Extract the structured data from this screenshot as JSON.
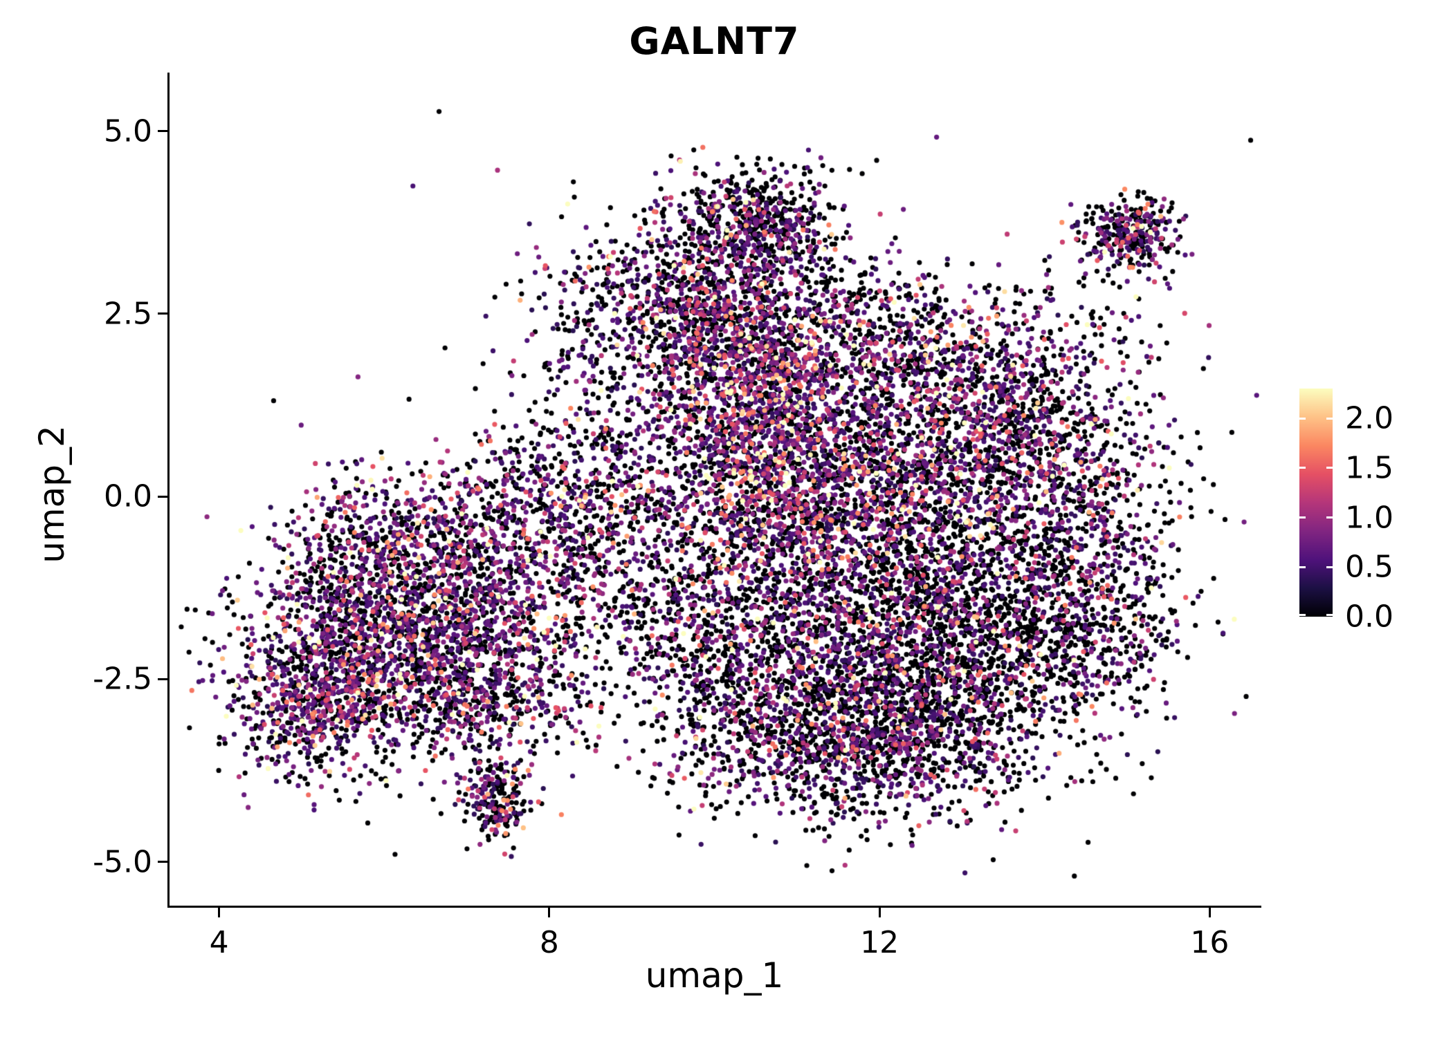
{
  "chart_data": {
    "type": "scatter",
    "title": "GALNT7",
    "xlabel": "umap_1",
    "ylabel": "umap_2",
    "xlim": [
      3.4,
      16.6
    ],
    "ylim": [
      -5.6,
      5.8
    ],
    "x_ticks": [
      4,
      8,
      12,
      16
    ],
    "x_tick_labels": [
      "4",
      "8",
      "12",
      "16"
    ],
    "y_ticks": [
      5.0,
      2.5,
      0.0,
      -2.5,
      -5.0
    ],
    "y_tick_labels": [
      "5.0",
      "2.5",
      "0.0",
      "-2.5",
      "-5.0"
    ],
    "grid": false,
    "legend_position": "right",
    "legend": {
      "ticks": [
        2.0,
        1.5,
        1.0,
        0.5,
        0.0
      ],
      "tick_labels": [
        "2.0",
        "1.5",
        "1.0",
        "0.5",
        "0.0"
      ],
      "vmin": 0.0,
      "vmax": 2.3
    },
    "colormap": {
      "name": "magma",
      "stops": [
        "#000004",
        "#1c1044",
        "#4f127b",
        "#812581",
        "#b5367a",
        "#e55064",
        "#fb8761",
        "#fec287",
        "#fcfdbf"
      ]
    },
    "point_radius_px": 3.6,
    "seed": 42,
    "expr": {
      "nonzero_min": 0.35,
      "cap": 2.3
    },
    "clusters": [
      {
        "cx": 6.2,
        "cy": -1.8,
        "sx": 1.0,
        "sy": 0.85,
        "n": 1500,
        "p0": 0.42,
        "scale": 0.5
      },
      {
        "cx": 5.35,
        "cy": -2.6,
        "sx": 0.55,
        "sy": 0.6,
        "n": 500,
        "p0": 0.45,
        "scale": 0.5
      },
      {
        "cx": 6.0,
        "cy": -0.7,
        "sx": 0.7,
        "sy": 0.55,
        "n": 450,
        "p0": 0.45,
        "scale": 0.5
      },
      {
        "cx": 7.3,
        "cy": -1.3,
        "sx": 0.7,
        "sy": 0.8,
        "n": 600,
        "p0": 0.45,
        "scale": 0.5
      },
      {
        "cx": 7.2,
        "cy": -2.9,
        "sx": 0.6,
        "sy": 0.4,
        "n": 300,
        "p0": 0.5,
        "scale": 0.45
      },
      {
        "cx": 7.35,
        "cy": -4.15,
        "sx": 0.22,
        "sy": 0.32,
        "n": 220,
        "p0": 0.5,
        "scale": 0.5
      },
      {
        "cx": 7.9,
        "cy": 0.1,
        "sx": 0.6,
        "sy": 0.5,
        "n": 300,
        "p0": 0.5,
        "scale": 0.45
      },
      {
        "cx": 8.8,
        "cy": -0.6,
        "sx": 0.6,
        "sy": 0.8,
        "n": 350,
        "p0": 0.55,
        "scale": 0.45
      },
      {
        "cx": 9.6,
        "cy": 0.9,
        "sx": 0.7,
        "sy": 0.9,
        "n": 500,
        "p0": 0.5,
        "scale": 0.5
      },
      {
        "cx": 10.6,
        "cy": 1.4,
        "sx": 0.55,
        "sy": 0.6,
        "n": 700,
        "p0": 0.28,
        "scale": 0.6
      },
      {
        "cx": 10.3,
        "cy": 2.4,
        "sx": 0.6,
        "sy": 0.45,
        "n": 400,
        "p0": 0.45,
        "scale": 0.5
      },
      {
        "cx": 10.45,
        "cy": 3.75,
        "sx": 0.5,
        "sy": 0.38,
        "n": 550,
        "p0": 0.6,
        "scale": 0.4
      },
      {
        "cx": 9.4,
        "cy": 2.7,
        "sx": 0.65,
        "sy": 0.5,
        "n": 250,
        "p0": 0.6,
        "scale": 0.4
      },
      {
        "cx": 11.6,
        "cy": 0.3,
        "sx": 0.8,
        "sy": 0.9,
        "n": 900,
        "p0": 0.5,
        "scale": 0.5
      },
      {
        "cx": 12.8,
        "cy": 1.2,
        "sx": 0.9,
        "sy": 0.8,
        "n": 900,
        "p0": 0.45,
        "scale": 0.55
      },
      {
        "cx": 13.9,
        "cy": 0.9,
        "sx": 0.7,
        "sy": 0.8,
        "n": 600,
        "p0": 0.5,
        "scale": 0.5
      },
      {
        "cx": 12.3,
        "cy": -0.6,
        "sx": 1.0,
        "sy": 0.7,
        "n": 900,
        "p0": 0.55,
        "scale": 0.5
      },
      {
        "cx": 14.4,
        "cy": -0.8,
        "sx": 0.7,
        "sy": 0.9,
        "n": 550,
        "p0": 0.6,
        "scale": 0.45
      },
      {
        "cx": 11.7,
        "cy": -2.2,
        "sx": 1.1,
        "sy": 0.8,
        "n": 1400,
        "p0": 0.62,
        "scale": 0.45
      },
      {
        "cx": 13.2,
        "cy": -2.3,
        "sx": 0.8,
        "sy": 0.8,
        "n": 800,
        "p0": 0.6,
        "scale": 0.45
      },
      {
        "cx": 11.0,
        "cy": -3.4,
        "sx": 0.8,
        "sy": 0.55,
        "n": 600,
        "p0": 0.6,
        "scale": 0.45
      },
      {
        "cx": 12.3,
        "cy": -3.4,
        "sx": 0.7,
        "sy": 0.5,
        "n": 500,
        "p0": 0.6,
        "scale": 0.45
      },
      {
        "cx": 9.9,
        "cy": -1.8,
        "sx": 0.7,
        "sy": 0.8,
        "n": 500,
        "p0": 0.55,
        "scale": 0.5
      },
      {
        "cx": 10.0,
        "cy": 3.0,
        "sx": 1.0,
        "sy": 0.55,
        "n": 300,
        "p0": 0.55,
        "scale": 0.45
      },
      {
        "cx": 15.05,
        "cy": 3.6,
        "sx": 0.33,
        "sy": 0.27,
        "n": 300,
        "p0": 0.5,
        "scale": 0.55
      },
      {
        "cx": 14.6,
        "cy": -1.9,
        "sx": 0.5,
        "sy": 0.7,
        "n": 300,
        "p0": 0.6,
        "scale": 0.45
      },
      {
        "cx": 8.8,
        "cy": 2.0,
        "sx": 0.8,
        "sy": 0.7,
        "n": 250,
        "p0": 0.5,
        "scale": 0.5
      },
      {
        "cx": 5.0,
        "cy": -2.9,
        "sx": 0.35,
        "sy": 0.5,
        "n": 200,
        "p0": 0.45,
        "scale": 0.5
      },
      {
        "cx": 10.6,
        "cy": 0.0,
        "sx": 0.5,
        "sy": 0.6,
        "n": 450,
        "p0": 0.35,
        "scale": 0.6
      },
      {
        "cx": 12.0,
        "cy": 2.3,
        "sx": 0.8,
        "sy": 0.5,
        "n": 400,
        "p0": 0.5,
        "scale": 0.5
      },
      {
        "cx": 14.5,
        "cy": 2.9,
        "sx": 0.5,
        "sy": 0.35,
        "n": 30,
        "p0": 0.6,
        "scale": 0.4
      },
      {
        "cx": 10.5,
        "cy": -0.5,
        "sx": 3.2,
        "sy": 2.3,
        "n": 120,
        "p0": 0.65,
        "scale": 0.45
      }
    ]
  }
}
